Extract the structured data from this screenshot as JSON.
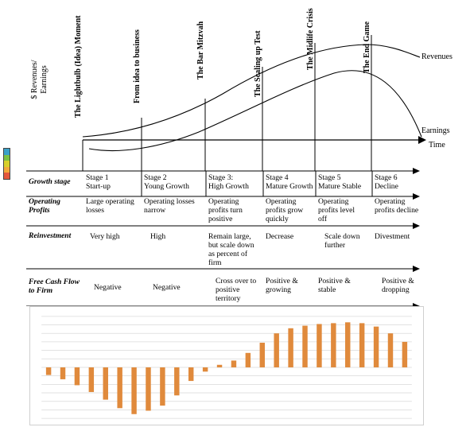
{
  "lifecycle": {
    "y_axis_label": [
      "$ Revenues/",
      "Earnings"
    ],
    "time_label": "Time",
    "revenues_label": "Revenues",
    "earnings_label": "Earnings",
    "stage_titles": [
      "The Lightbulb (Idea) Moment",
      "From idea to business",
      "The Bar Mitzvah",
      "The Scaling up Test",
      "The Midlife Crisis",
      "The End Game"
    ]
  },
  "table": {
    "row_headers": {
      "growth_stage": "Growth stage",
      "operating_profits": [
        "Operating",
        "Profits"
      ],
      "reinvestment": "Reinvestment",
      "fcff": [
        "Free Cash Flow",
        "to Firm"
      ]
    },
    "stages": [
      {
        "stage": [
          "Stage 1",
          "Start-up"
        ],
        "operating_profits": [
          "Large operating",
          "losses"
        ],
        "reinvestment": [
          "Very high"
        ],
        "fcff": [
          "Negative"
        ]
      },
      {
        "stage": [
          "Stage 2",
          "Young Growth"
        ],
        "operating_profits": [
          "Operating losses",
          "narrow"
        ],
        "reinvestment": [
          "High"
        ],
        "fcff": [
          "Negative"
        ]
      },
      {
        "stage": [
          "Stage 3:",
          "High Growth"
        ],
        "operating_profits": [
          "Operating",
          "profits turn",
          "positive"
        ],
        "reinvestment": [
          "Remain large,",
          "but scale down",
          "as percent of",
          "firm"
        ],
        "fcff": [
          "Cross over to",
          "positive",
          "territory"
        ]
      },
      {
        "stage": [
          "Stage 4",
          "Mature Growth"
        ],
        "operating_profits": [
          "Operating",
          "profits grow",
          "quickly"
        ],
        "reinvestment": [
          "Decrease"
        ],
        "fcff": [
          "Positive &",
          "growing"
        ]
      },
      {
        "stage": [
          "Stage 5",
          "Mature Stable"
        ],
        "operating_profits": [
          "Operating",
          "profits level",
          "off"
        ],
        "reinvestment": [
          "Scale down",
          "further"
        ],
        "fcff": [
          "Positive &",
          "stable"
        ]
      },
      {
        "stage": [
          "Stage 6",
          "Decline"
        ],
        "operating_profits": [
          "Operating",
          "profits decline"
        ],
        "reinvestment": [
          "Divestment"
        ],
        "fcff": [
          "Positive &",
          "dropping"
        ]
      }
    ]
  },
  "stage_indicator_colors": [
    "#3aa0c8",
    "#7cc142",
    "#d8d02a",
    "#f2a93b",
    "#e4573d"
  ],
  "colors": {
    "bar": "#e08a3c",
    "grid": "#d9d9d9",
    "line": "#000000"
  },
  "chart_data": {
    "type": "bar",
    "values": [
      -0.9,
      -1.4,
      -2.1,
      -2.9,
      -3.8,
      -4.8,
      -5.5,
      -5.1,
      -4.5,
      -3.3,
      -1.6,
      -0.5,
      0.3,
      0.8,
      1.7,
      2.9,
      4.0,
      4.6,
      4.9,
      5.1,
      5.2,
      5.3,
      5.2,
      4.8,
      4.0,
      3.0
    ],
    "ylim": [
      -6,
      6
    ],
    "grid": true
  }
}
